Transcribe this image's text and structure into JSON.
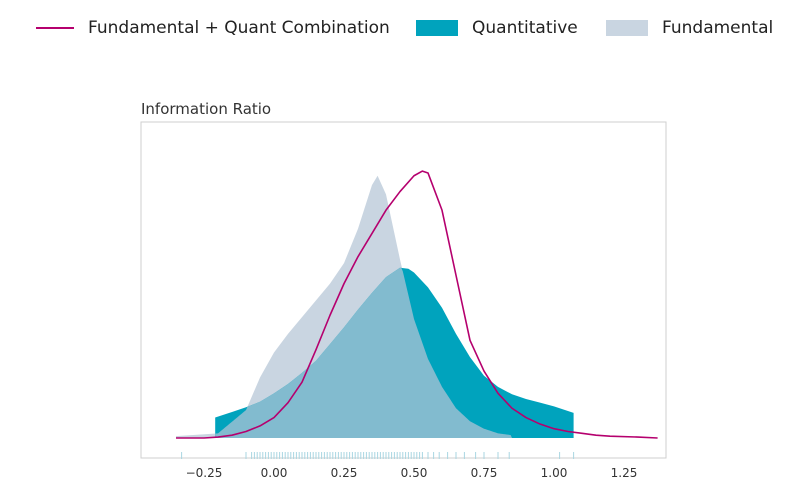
{
  "legend": {
    "combo_label": "Fundamental + Quant Combination",
    "quant_label": "Quantitative",
    "fund_label": "Fundamental"
  },
  "colors": {
    "combo": "#b5006e",
    "quant": "#00a3bd",
    "fund": "#c9d5e1",
    "overlap": "#82bbcf",
    "rug": "#a9d6e2",
    "frame": "#cfcfcf"
  },
  "chart_data": {
    "type": "area",
    "title": "Information Ratio",
    "xlabel": "",
    "ylabel": "",
    "xlim": [
      -0.35,
      1.4
    ],
    "ylim": [
      0,
      3.0
    ],
    "x_ticks": [
      -0.25,
      0.0,
      0.25,
      0.5,
      0.75,
      1.0,
      1.25
    ],
    "x_tick_labels": [
      "−0.25",
      "0.00",
      "0.25",
      "0.50",
      "0.75",
      "1.00",
      "1.25"
    ],
    "grid": false,
    "legend_position": "top",
    "series": [
      {
        "name": "Fundamental",
        "kind": "density-area",
        "x": [
          -0.35,
          -0.2,
          -0.1,
          -0.05,
          0.0,
          0.05,
          0.1,
          0.15,
          0.2,
          0.25,
          0.3,
          0.35,
          0.37,
          0.4,
          0.45,
          0.5,
          0.55,
          0.6,
          0.65,
          0.7,
          0.75,
          0.8,
          0.85
        ],
        "y": [
          0.02,
          0.05,
          0.3,
          0.65,
          0.92,
          1.12,
          1.3,
          1.48,
          1.66,
          1.88,
          2.25,
          2.72,
          2.82,
          2.62,
          1.92,
          1.28,
          0.85,
          0.55,
          0.32,
          0.18,
          0.1,
          0.05,
          0.03
        ]
      },
      {
        "name": "Quantitative",
        "kind": "density-area",
        "x": [
          -0.21,
          -0.15,
          -0.1,
          -0.05,
          0.0,
          0.05,
          0.1,
          0.15,
          0.2,
          0.25,
          0.3,
          0.35,
          0.4,
          0.45,
          0.48,
          0.5,
          0.55,
          0.6,
          0.65,
          0.7,
          0.75,
          0.8,
          0.85,
          0.9,
          0.95,
          1.0,
          1.07
        ],
        "y": [
          0.22,
          0.28,
          0.33,
          0.39,
          0.48,
          0.58,
          0.7,
          0.83,
          1.01,
          1.19,
          1.38,
          1.56,
          1.73,
          1.83,
          1.82,
          1.78,
          1.62,
          1.4,
          1.12,
          0.87,
          0.67,
          0.55,
          0.47,
          0.42,
          0.38,
          0.34,
          0.27
        ]
      },
      {
        "name": "Fundamental + Quant Combination",
        "kind": "density-line",
        "x": [
          -0.35,
          -0.25,
          -0.2,
          -0.15,
          -0.1,
          -0.05,
          0.0,
          0.05,
          0.1,
          0.15,
          0.2,
          0.25,
          0.3,
          0.35,
          0.4,
          0.45,
          0.5,
          0.53,
          0.55,
          0.6,
          0.65,
          0.7,
          0.75,
          0.8,
          0.85,
          0.9,
          0.95,
          1.0,
          1.05,
          1.1,
          1.15,
          1.2,
          1.3,
          1.37
        ],
        "y": [
          0.0,
          0.0,
          0.01,
          0.03,
          0.07,
          0.13,
          0.22,
          0.38,
          0.6,
          0.95,
          1.32,
          1.66,
          1.95,
          2.2,
          2.45,
          2.65,
          2.82,
          2.87,
          2.85,
          2.45,
          1.75,
          1.05,
          0.72,
          0.48,
          0.32,
          0.22,
          0.15,
          0.1,
          0.07,
          0.05,
          0.03,
          0.02,
          0.01,
          0.0
        ]
      }
    ],
    "rug_x": [
      -0.33,
      -0.1,
      -0.08,
      -0.07,
      -0.06,
      -0.05,
      -0.04,
      -0.03,
      -0.02,
      -0.01,
      0.0,
      0.01,
      0.02,
      0.03,
      0.04,
      0.05,
      0.06,
      0.07,
      0.08,
      0.09,
      0.1,
      0.11,
      0.12,
      0.13,
      0.14,
      0.15,
      0.16,
      0.17,
      0.18,
      0.19,
      0.2,
      0.21,
      0.22,
      0.23,
      0.24,
      0.25,
      0.26,
      0.27,
      0.28,
      0.29,
      0.3,
      0.31,
      0.32,
      0.33,
      0.34,
      0.35,
      0.36,
      0.37,
      0.38,
      0.39,
      0.4,
      0.41,
      0.42,
      0.43,
      0.44,
      0.45,
      0.46,
      0.47,
      0.48,
      0.49,
      0.5,
      0.51,
      0.52,
      0.53,
      0.55,
      0.57,
      0.59,
      0.62,
      0.65,
      0.68,
      0.72,
      0.75,
      0.8,
      0.84,
      1.02,
      1.07
    ]
  }
}
